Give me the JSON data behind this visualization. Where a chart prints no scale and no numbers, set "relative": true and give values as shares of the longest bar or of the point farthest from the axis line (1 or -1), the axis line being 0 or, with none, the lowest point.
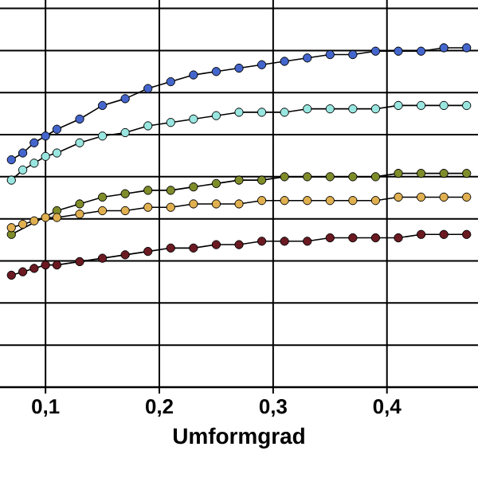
{
  "chart_data": {
    "type": "line",
    "relative": true,
    "xlabel": "Umformgrad",
    "x": [
      0.07,
      0.08,
      0.09,
      0.1,
      0.11,
      0.13,
      0.15,
      0.17,
      0.19,
      0.21,
      0.23,
      0.25,
      0.27,
      0.29,
      0.31,
      0.33,
      0.35,
      0.37,
      0.39,
      0.41,
      0.43,
      0.45,
      0.47
    ],
    "xlim": [
      0.06,
      0.48
    ],
    "xticks": [
      {
        "value": 0.1,
        "label": "0,1"
      },
      {
        "value": 0.2,
        "label": "0,2"
      },
      {
        "value": 0.3,
        "label": "0,3"
      },
      {
        "value": 0.4,
        "label": "0,4"
      }
    ],
    "grid": true,
    "marker": "circle",
    "line_style": "solid",
    "series": [
      {
        "color": "#4466cc",
        "values": [
          0.67,
          0.69,
          0.72,
          0.74,
          0.76,
          0.79,
          0.83,
          0.85,
          0.88,
          0.9,
          0.92,
          0.93,
          0.94,
          0.95,
          0.96,
          0.97,
          0.98,
          0.98,
          0.99,
          0.99,
          0.99,
          1.0,
          1.0
        ]
      },
      {
        "color": "#99e6e0",
        "values": [
          0.61,
          0.64,
          0.66,
          0.68,
          0.69,
          0.72,
          0.74,
          0.75,
          0.77,
          0.78,
          0.79,
          0.8,
          0.81,
          0.81,
          0.81,
          0.82,
          0.82,
          0.82,
          0.82,
          0.83,
          0.83,
          0.83,
          0.83
        ]
      },
      {
        "color": "#7f8c2a",
        "values": [
          0.45,
          null,
          null,
          null,
          0.52,
          0.54,
          0.56,
          0.57,
          0.58,
          0.58,
          0.59,
          0.6,
          0.61,
          0.61,
          0.62,
          0.62,
          0.62,
          0.62,
          0.62,
          0.63,
          0.63,
          0.63,
          0.63
        ]
      },
      {
        "color": "#e0b050",
        "values": [
          0.47,
          0.48,
          0.49,
          0.5,
          0.5,
          0.51,
          0.52,
          0.52,
          0.53,
          0.53,
          0.54,
          0.54,
          0.54,
          0.55,
          0.55,
          0.55,
          0.55,
          0.55,
          0.55,
          0.56,
          0.56,
          0.56,
          0.56
        ]
      },
      {
        "color": "#6b1a22",
        "values": [
          0.33,
          0.34,
          0.35,
          0.36,
          0.36,
          0.37,
          0.38,
          0.39,
          0.4,
          0.41,
          0.41,
          0.42,
          0.42,
          0.43,
          0.43,
          0.43,
          0.44,
          0.44,
          0.44,
          0.44,
          0.45,
          0.45,
          0.45
        ]
      }
    ]
  }
}
